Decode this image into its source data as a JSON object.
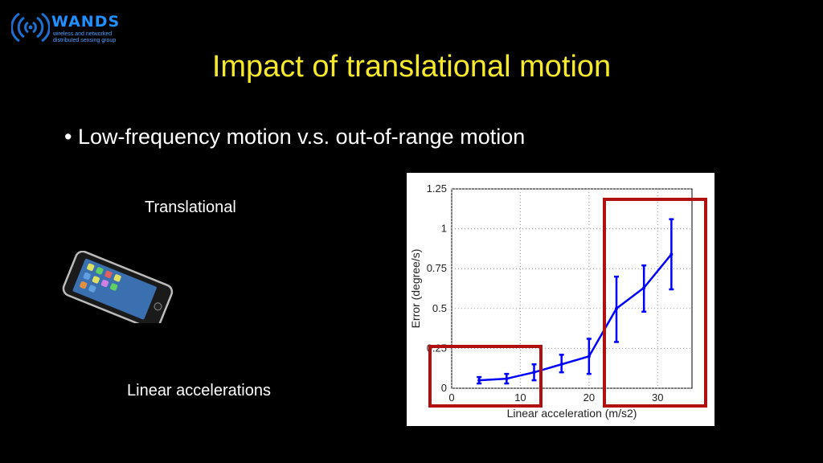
{
  "logo": {
    "name": "WANDS",
    "subtitle": "wireless and networked distributed sensing group"
  },
  "slide": {
    "title": "Impact of translational motion",
    "bullet": "Low-frequency motion v.s. out-of-range motion",
    "label_top": "Translational",
    "label_bottom": "Linear accelerations"
  },
  "chart_data": {
    "type": "line",
    "xlabel": "Linear acceleration (m/s2)",
    "ylabel": "Error (degree/s)",
    "xlim": [
      0,
      35
    ],
    "ylim": [
      0,
      1.25
    ],
    "xticks": [
      "0",
      "10",
      "20",
      "30"
    ],
    "yticks": [
      "0",
      "0.25",
      "0.5",
      "0.75",
      "1",
      "1.25"
    ],
    "grid": true,
    "series": [
      {
        "color": "#0000ff",
        "x": [
          4,
          8,
          12,
          16,
          20,
          24,
          28,
          32
        ],
        "y": [
          0.05,
          0.06,
          0.1,
          0.15,
          0.2,
          0.5,
          0.63,
          0.84
        ],
        "err_low": [
          0.03,
          0.03,
          0.05,
          0.1,
          0.09,
          0.29,
          0.48,
          0.62
        ],
        "err_high": [
          0.07,
          0.09,
          0.15,
          0.21,
          0.31,
          0.7,
          0.77,
          1.06
        ]
      }
    ],
    "highlight_boxes_color": "#b01010"
  }
}
